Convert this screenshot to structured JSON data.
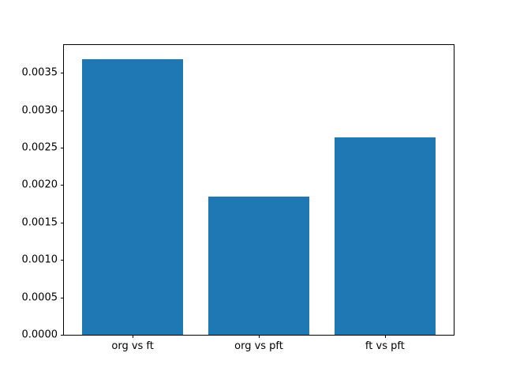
{
  "figure": {
    "background_color": "#ffffff",
    "bar_color": "#1f77b4",
    "spine_color": "#000000",
    "tick_color": "#000000"
  },
  "chart_data": {
    "type": "bar",
    "title": "",
    "xlabel": "",
    "ylabel": "",
    "categories": [
      "org vs ft",
      "org vs pft",
      "ft vs pft"
    ],
    "values": [
      0.00368,
      0.00185,
      0.00264
    ],
    "ylim": [
      0,
      0.00387
    ],
    "xlim": [
      -0.545,
      2.545
    ],
    "yticks": [
      0.0,
      0.0005,
      0.001,
      0.0015,
      0.002,
      0.0025,
      0.003,
      0.0035
    ],
    "ytick_labels": [
      "0.0000",
      "0.0005",
      "0.0010",
      "0.0015",
      "0.0020",
      "0.0025",
      "0.0030",
      "0.0035"
    ],
    "bar_width_fraction": 0.8,
    "grid": false,
    "legend": null
  }
}
